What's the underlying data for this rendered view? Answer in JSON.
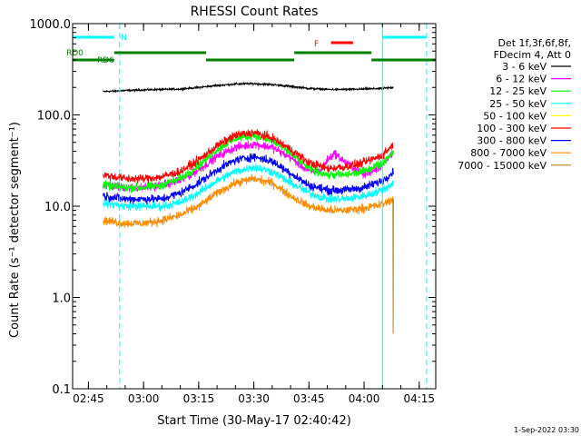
{
  "chart_data": {
    "type": "line",
    "title": "RHESSI Count Rates",
    "xlabel": "Start Time (30-May-17 02:40:42)",
    "ylabel": "Count Rate (s⁻¹ detector segment⁻¹)",
    "yscale": "log",
    "ylim": [
      0.1,
      1000
    ],
    "xlim": [
      "02:40:42",
      "04:19:30"
    ],
    "x_ticks": [
      "02:45",
      "03:00",
      "03:15",
      "03:30",
      "03:45",
      "04:00",
      "04:15"
    ],
    "y_ticks": [
      "0.1",
      "1.0",
      "10.0",
      "100.0",
      "1000.0"
    ],
    "timestamp": "1-Sep-2022 03:30",
    "legend": {
      "placement": "top-right",
      "header": [
        "Det 1f,3f,6f,8f,",
        "FDecim 4, Att 0"
      ],
      "entries": [
        {
          "label": "3 - 6 keV",
          "color": "#000000"
        },
        {
          "label": "6 - 12 keV",
          "color": "#ff00ff"
        },
        {
          "label": "12 - 25 keV",
          "color": "#00ff00"
        },
        {
          "label": "25 - 50 keV",
          "color": "#00ffff"
        },
        {
          "label": "50 - 100 keV",
          "color": "#ffff00"
        },
        {
          "label": "100 - 300 keV",
          "color": "#ff0000"
        },
        {
          "label": "300 - 800 keV",
          "color": "#0000ff"
        },
        {
          "label": "800 - 7000 keV",
          "color": "#ff8c00"
        },
        {
          "label": "7000 - 15000 keV",
          "color": "#b8860b"
        }
      ]
    },
    "flag_bars": [
      {
        "label": "N",
        "color": "#00ffff",
        "segments": [
          [
            "02:40:42",
            "02:52:00"
          ],
          [
            "04:05:00",
            "04:17:00"
          ]
        ]
      },
      {
        "label": "RD0",
        "color": "#008000",
        "segments": [
          [
            "02:52:00",
            "03:17:00"
          ],
          [
            "03:41:00",
            "04:02:00"
          ]
        ]
      },
      {
        "label": "RD6",
        "color": "#008000",
        "segments": [
          [
            "02:40:42",
            "02:52:00"
          ],
          [
            "03:17:00",
            "03:41:00"
          ],
          [
            "04:02:00",
            "04:19:30"
          ]
        ]
      },
      {
        "label": "F",
        "color": "#ff0000",
        "segments": [
          [
            "03:51:00",
            "03:57:00"
          ]
        ]
      }
    ],
    "vlines": [
      {
        "time": "02:40:42",
        "style": "solid",
        "color": "#00ffff"
      },
      {
        "time": "02:53:30",
        "style": "dashed",
        "color": "#00ffff"
      },
      {
        "time": "04:05:00",
        "style": "solid",
        "color": "#00ffff"
      },
      {
        "time": "04:17:00",
        "style": "dashed",
        "color": "#00ffff"
      }
    ],
    "series": [
      {
        "name": "3 - 6 keV",
        "color": "#000000",
        "x": [
          "02:49",
          "02:55",
          "03:00",
          "03:05",
          "03:10",
          "03:15",
          "03:20",
          "03:25",
          "03:30",
          "03:35",
          "03:40",
          "03:45",
          "03:50",
          "03:55",
          "04:00",
          "04:05",
          "04:08"
        ],
        "y": [
          180,
          185,
          188,
          190,
          192,
          200,
          210,
          218,
          220,
          215,
          205,
          195,
          190,
          190,
          192,
          195,
          200
        ]
      },
      {
        "name": "6 - 12 keV",
        "color": "#ff00ff",
        "x": [
          "02:49",
          "02:55",
          "03:00",
          "03:05",
          "03:10",
          "03:15",
          "03:20",
          "03:25",
          "03:30",
          "03:35",
          "03:40",
          "03:45",
          "03:48",
          "03:50",
          "03:52",
          "03:55",
          "04:00",
          "04:05",
          "04:08"
        ],
        "y": [
          17,
          16,
          16,
          17,
          19,
          25,
          35,
          44,
          48,
          44,
          34,
          24,
          24,
          32,
          38,
          30,
          22,
          28,
          40
        ]
      },
      {
        "name": "12 - 25 keV",
        "color": "#00ff00",
        "x": [
          "02:49",
          "02:55",
          "03:00",
          "03:05",
          "03:10",
          "03:15",
          "03:20",
          "03:25",
          "03:30",
          "03:35",
          "03:40",
          "03:45",
          "03:50",
          "03:55",
          "04:00",
          "04:05",
          "04:08"
        ],
        "y": [
          17,
          16,
          16,
          17,
          20,
          28,
          42,
          55,
          60,
          52,
          38,
          26,
          22,
          22,
          24,
          30,
          40
        ]
      },
      {
        "name": "25 - 50 keV",
        "color": "#00ffff",
        "x": [
          "02:49",
          "02:55",
          "03:00",
          "03:05",
          "03:10",
          "03:15",
          "03:20",
          "03:25",
          "03:30",
          "03:35",
          "03:40",
          "03:45",
          "03:50",
          "03:55",
          "04:00",
          "04:05",
          "04:08"
        ],
        "y": [
          11,
          10,
          10,
          10,
          11,
          14,
          19,
          24,
          27,
          24,
          18,
          14,
          12,
          12,
          13,
          15,
          18
        ]
      },
      {
        "name": "100 - 300 keV",
        "color": "#ff0000",
        "x": [
          "02:49",
          "02:55",
          "03:00",
          "03:05",
          "03:10",
          "03:15",
          "03:20",
          "03:25",
          "03:30",
          "03:35",
          "03:40",
          "03:45",
          "03:50",
          "03:55",
          "04:00",
          "04:05",
          "04:08"
        ],
        "y": [
          22,
          20,
          20,
          21,
          24,
          32,
          46,
          60,
          64,
          56,
          42,
          30,
          26,
          27,
          30,
          36,
          48
        ]
      },
      {
        "name": "300 - 800 keV",
        "color": "#0000ff",
        "x": [
          "02:49",
          "02:55",
          "03:00",
          "03:05",
          "03:10",
          "03:15",
          "03:20",
          "03:25",
          "03:30",
          "03:35",
          "03:40",
          "03:45",
          "03:50",
          "03:55",
          "04:00",
          "04:05",
          "04:08"
        ],
        "y": [
          13,
          12,
          12,
          12,
          14,
          18,
          25,
          32,
          35,
          31,
          23,
          17,
          15,
          15,
          16,
          19,
          24
        ]
      },
      {
        "name": "800 - 7000 keV",
        "color": "#ff8c00",
        "x": [
          "02:49",
          "02:55",
          "03:00",
          "03:05",
          "03:10",
          "03:15",
          "03:20",
          "03:25",
          "03:30",
          "03:35",
          "03:40",
          "03:45",
          "03:50",
          "03:55",
          "04:00",
          "04:05",
          "04:08"
        ],
        "y": [
          7,
          6.5,
          6.5,
          7,
          8,
          10,
          14,
          18,
          20,
          18,
          13,
          10,
          9,
          9,
          9.5,
          10.5,
          12
        ]
      },
      {
        "name": "7000 - 15000 keV",
        "color": "#b8860b",
        "x": [
          "04:07:50",
          "04:07:55",
          "04:08:00"
        ],
        "y": [
          12,
          0.4,
          12
        ]
      }
    ]
  }
}
